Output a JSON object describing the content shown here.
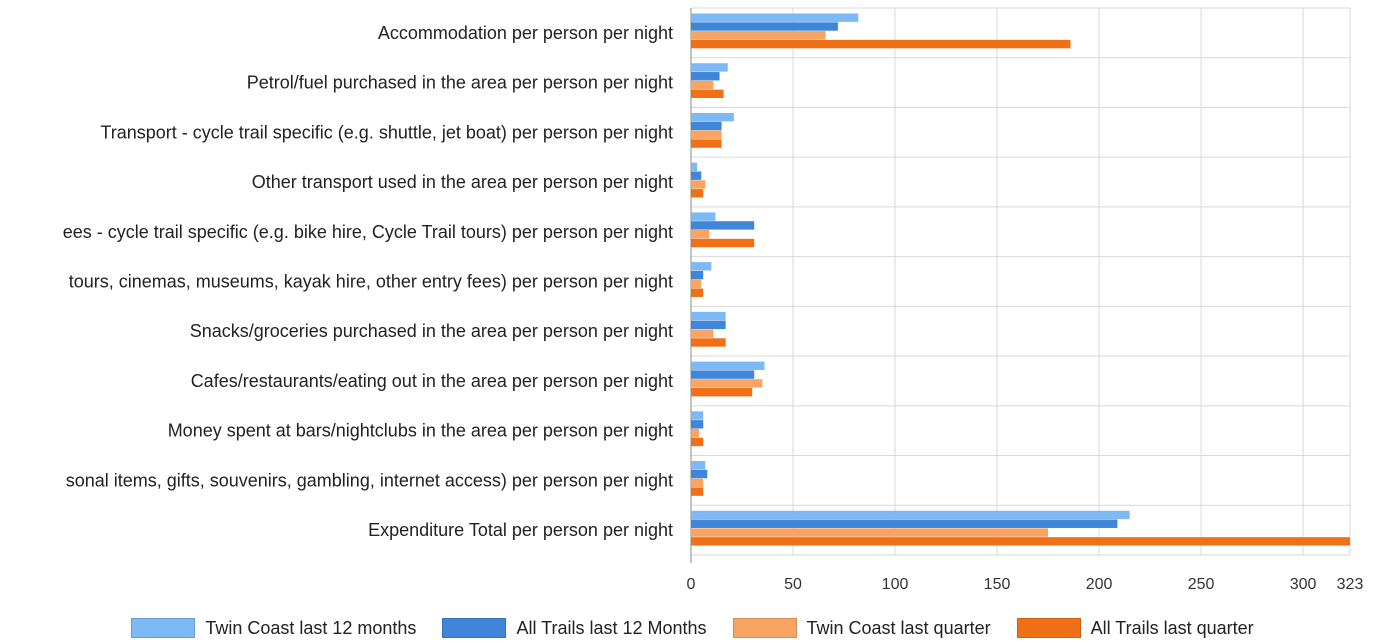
{
  "chart_data": {
    "type": "bar",
    "orientation": "horizontal",
    "categories": [
      "Accommodation per person per night",
      "Petrol/fuel purchased in the area per person per night",
      "Transport - cycle trail specific (e.g. shuttle, jet boat) per person per night",
      "Other transport used in the area per person per night",
      "ees - cycle trail specific (e.g. bike hire, Cycle Trail tours) per person per night",
      "tours, cinemas, museums, kayak hire, other entry fees) per person per night",
      "Snacks/groceries purchased in the area  per person per night",
      "Cafes/restaurants/eating out in the area per person per night",
      "Money spent at bars/nightclubs in the area per person per night",
      "sonal items,  gifts, souvenirs, gambling, internet access) per person per night",
      "Expenditure Total per person per night"
    ],
    "series": [
      {
        "name": "Twin Coast last 12 months",
        "color": "#7db9f5",
        "values": [
          82,
          18,
          21,
          3,
          12,
          10,
          17,
          36,
          6,
          7,
          215
        ]
      },
      {
        "name": "All Trails last 12 Months",
        "color": "#3f86d8",
        "values": [
          72,
          14,
          15,
          5,
          31,
          6,
          17,
          31,
          6,
          8,
          209
        ]
      },
      {
        "name": "Twin Coast last quarter",
        "color": "#f9a463",
        "values": [
          66,
          11,
          15,
          7,
          9,
          5,
          11,
          35,
          4,
          6,
          175
        ]
      },
      {
        "name": "All Trails last quarter",
        "color": "#f07018",
        "values": [
          186,
          16,
          15,
          6,
          31,
          6,
          17,
          30,
          6,
          6,
          323
        ]
      }
    ],
    "xticks": [
      "0",
      "50",
      "100",
      "150",
      "200",
      "250",
      "300",
      "323"
    ],
    "xlim": [
      0,
      323
    ],
    "grid": true,
    "legend_position": "bottom"
  }
}
